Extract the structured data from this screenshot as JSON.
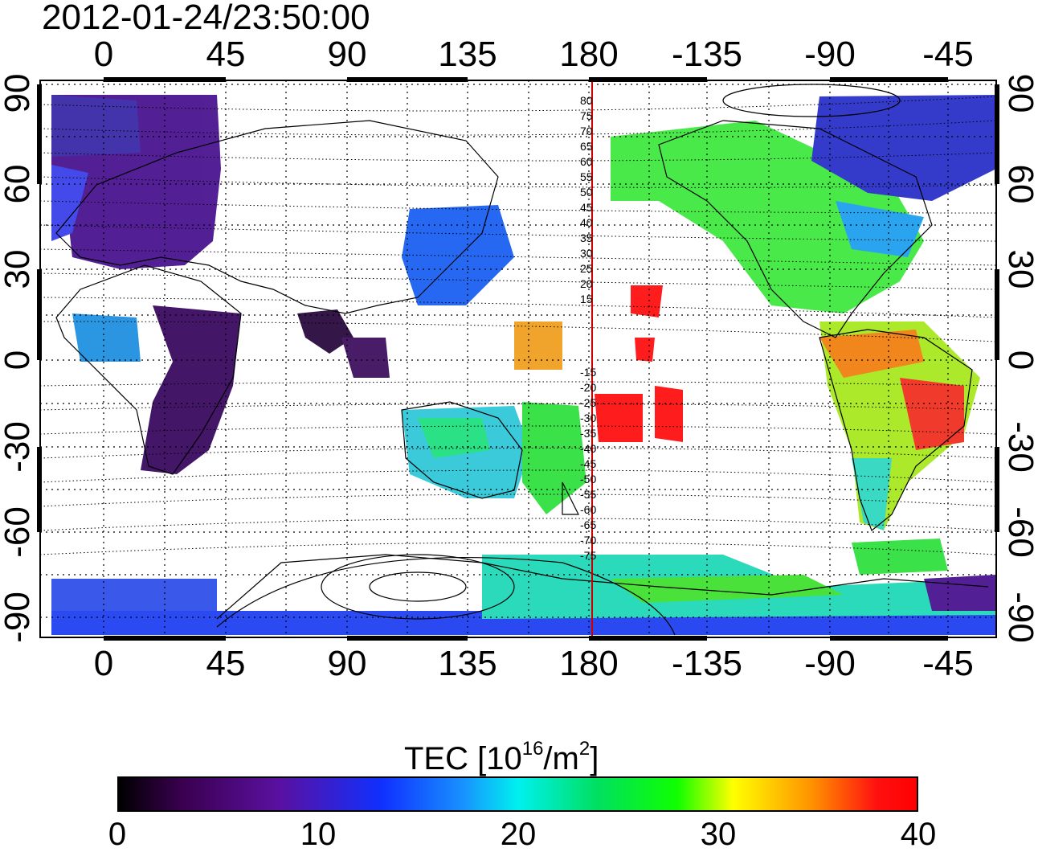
{
  "title": "2012-01-24/23:50:00",
  "lon_ticks": [
    "0",
    "45",
    "90",
    "135",
    "180",
    "-135",
    "-90",
    "-45"
  ],
  "lat_ticks": [
    "90",
    "60",
    "30",
    "0",
    "-30",
    "-60",
    "-90"
  ],
  "meridian_labels": [
    "80",
    "75",
    "70",
    "65",
    "60",
    "55",
    "50",
    "45",
    "40",
    "35",
    "30",
    "25",
    "20",
    "15",
    "-15",
    "-20",
    "-25",
    "-30",
    "-35",
    "-40",
    "-45",
    "-50",
    "-55",
    "-60",
    "-65",
    "-70",
    "-75"
  ],
  "colorbar": {
    "label_main": "TEC  [10",
    "label_exp": "16",
    "label_unit": "/m",
    "label_exp2": "2",
    "label_end": "]",
    "tick_labels": [
      "0",
      "10",
      "20",
      "30",
      "40"
    ],
    "range": [
      0,
      40
    ]
  },
  "colors": {
    "frame": "#000000",
    "meridian_line": "#cc0000",
    "colormap": [
      "#000000",
      "#5a10a0",
      "#1030ff",
      "#00f0f0",
      "#10ff00",
      "#ffff00",
      "#ff0000"
    ]
  }
}
